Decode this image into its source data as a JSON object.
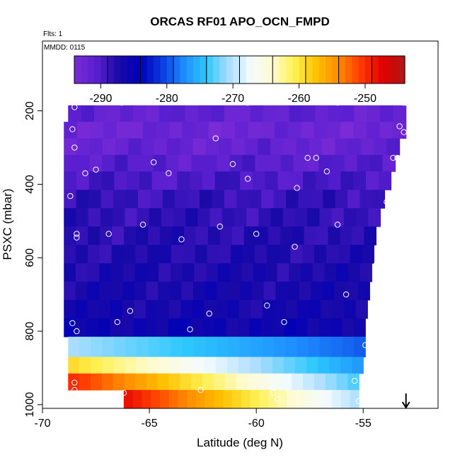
{
  "chart_data": {
    "type": "heatmap",
    "title": "ORCAS RF01 APO_OCN_FMPD",
    "annotations": {
      "flights": "Flts: 1",
      "date": "MMDD: 0115"
    },
    "xlabel": "Latitude (deg N)",
    "ylabel": "PSXC (mbar)",
    "xlim": [
      -70,
      -51.5
    ],
    "ylim": [
      1010,
      10
    ],
    "x_ticks": [
      -70,
      -65,
      -60,
      -55
    ],
    "x_tick_labels": [
      "-70",
      "-65",
      "-60",
      "-55"
    ],
    "y_ticks": [
      200,
      400,
      600,
      800,
      1000
    ],
    "y_tick_labels": [
      "200",
      "400",
      "600",
      "800",
      "1000"
    ],
    "colorbar": {
      "range": [
        -294,
        -244
      ],
      "ticks": [
        -290,
        -280,
        -270,
        -260,
        -250
      ],
      "tick_labels": [
        "-290",
        "-280",
        "-270",
        "-260",
        "-250"
      ],
      "stops": [
        "#7a2bd6",
        "#5a1fd0",
        "#1a0aa8",
        "#0000b8",
        "#0a3ce0",
        "#1f8fff",
        "#2ec8ff",
        "#a8ddff",
        "#f4fbff",
        "#fffbd0",
        "#fff050",
        "#ffc000",
        "#ff8a00",
        "#ff3a00",
        "#e00000",
        "#b01818"
      ]
    },
    "bands": [
      {
        "p_top": 185,
        "p_bot": 230,
        "lat_min": -68.8,
        "lat_max": -53.0,
        "value": -291.5
      },
      {
        "p_top": 230,
        "p_bot": 275,
        "lat_min": -69.0,
        "lat_max": -53.0,
        "value": -292.5
      },
      {
        "p_top": 275,
        "p_bot": 320,
        "lat_min": -69.0,
        "lat_max": -53.3,
        "value": -291.8
      },
      {
        "p_top": 320,
        "p_bot": 365,
        "lat_min": -69.0,
        "lat_max": -53.5,
        "value": -290.8
      },
      {
        "p_top": 365,
        "p_bot": 415,
        "lat_min": -69.0,
        "lat_max": -53.7,
        "value": -289.8
      },
      {
        "p_top": 415,
        "p_bot": 465,
        "lat_min": -69.0,
        "lat_max": -54.0,
        "value": -288.8
      },
      {
        "p_top": 465,
        "p_bot": 515,
        "lat_min": -69.0,
        "lat_max": -54.2,
        "value": -288.4
      },
      {
        "p_top": 515,
        "p_bot": 565,
        "lat_min": -69.0,
        "lat_max": -54.4,
        "value": -287.9
      },
      {
        "p_top": 565,
        "p_bot": 615,
        "lat_min": -69.0,
        "lat_max": -54.5,
        "value": -287.6
      },
      {
        "p_top": 615,
        "p_bot": 665,
        "lat_min": -69.0,
        "lat_max": -54.6,
        "value": -287.2
      },
      {
        "p_top": 665,
        "p_bot": 715,
        "lat_min": -69.0,
        "lat_max": -54.7,
        "value": -286.9
      },
      {
        "p_top": 715,
        "p_bot": 765,
        "lat_min": -69.0,
        "lat_max": -54.8,
        "value": -286.6
      },
      {
        "p_top": 765,
        "p_bot": 815,
        "lat_min": -69.0,
        "lat_max": -54.9,
        "value": -285.8
      },
      {
        "p_top": 815,
        "p_bot": 870,
        "lat_min": -68.8,
        "lat_max": -54.9,
        "value": -275.0
      },
      {
        "p_top": 870,
        "p_bot": 915,
        "lat_min": -68.8,
        "lat_max": -55.0,
        "value": -262.0
      },
      {
        "p_top": 915,
        "p_bot": 960,
        "lat_min": -68.8,
        "lat_max": -55.2,
        "value": -257.0
      },
      {
        "p_top": 960,
        "p_bot": 1010,
        "lat_min": -66.2,
        "lat_max": -55.2,
        "value": -256.0
      }
    ],
    "band_gradients": [
      {
        "band": 13,
        "start": -270.5,
        "end": -279.5
      },
      {
        "band": 14,
        "start": -259.0,
        "end": -277.0
      },
      {
        "band": 15,
        "start": -249.5,
        "end": -273.5
      },
      {
        "band": 16,
        "start": -248.0,
        "end": -270.5
      }
    ],
    "points": [
      {
        "x": -68.5,
        "y": 190
      },
      {
        "x": -66.3,
        "y": 178
      },
      {
        "x": -60.4,
        "y": 178
      },
      {
        "x": -56.2,
        "y": 178
      },
      {
        "x": -53.1,
        "y": 178
      },
      {
        "x": -53.0,
        "y": 178
      },
      {
        "x": -68.6,
        "y": 250
      },
      {
        "x": -61.9,
        "y": 275
      },
      {
        "x": -53.3,
        "y": 242
      },
      {
        "x": -53.1,
        "y": 258
      },
      {
        "x": -68.5,
        "y": 300
      },
      {
        "x": -64.8,
        "y": 340
      },
      {
        "x": -61.1,
        "y": 345
      },
      {
        "x": -57.6,
        "y": 328
      },
      {
        "x": -57.2,
        "y": 328
      },
      {
        "x": -53.6,
        "y": 328
      },
      {
        "x": -53.4,
        "y": 328
      },
      {
        "x": -67.5,
        "y": 360
      },
      {
        "x": -68.0,
        "y": 370
      },
      {
        "x": -64.1,
        "y": 370
      },
      {
        "x": -60.4,
        "y": 385
      },
      {
        "x": -56.7,
        "y": 365
      },
      {
        "x": -58.1,
        "y": 410
      },
      {
        "x": -68.7,
        "y": 432
      },
      {
        "x": -53.9,
        "y": 448
      },
      {
        "x": -65.3,
        "y": 510
      },
      {
        "x": -61.7,
        "y": 515
      },
      {
        "x": -56.2,
        "y": 510
      },
      {
        "x": -68.4,
        "y": 535
      },
      {
        "x": -68.4,
        "y": 545
      },
      {
        "x": -66.9,
        "y": 535
      },
      {
        "x": -63.5,
        "y": 550
      },
      {
        "x": -60.0,
        "y": 535
      },
      {
        "x": -58.2,
        "y": 570
      },
      {
        "x": -54.4,
        "y": 620
      },
      {
        "x": -55.8,
        "y": 700
      },
      {
        "x": -59.5,
        "y": 730
      },
      {
        "x": -65.9,
        "y": 745
      },
      {
        "x": -62.2,
        "y": 752
      },
      {
        "x": -68.6,
        "y": 778
      },
      {
        "x": -66.5,
        "y": 775
      },
      {
        "x": -58.7,
        "y": 775
      },
      {
        "x": -68.4,
        "y": 800
      },
      {
        "x": -63.1,
        "y": 795
      },
      {
        "x": -54.9,
        "y": 838
      },
      {
        "x": -55.4,
        "y": 935
      },
      {
        "x": -68.5,
        "y": 940
      },
      {
        "x": -68.5,
        "y": 960
      },
      {
        "x": -66.2,
        "y": 968
      },
      {
        "x": -62.6,
        "y": 960
      },
      {
        "x": -59.2,
        "y": 968
      },
      {
        "x": -59.0,
        "y": 985
      },
      {
        "x": -55.2,
        "y": 990
      }
    ],
    "marker": {
      "x": -53.0,
      "type": "down-arrow"
    }
  }
}
